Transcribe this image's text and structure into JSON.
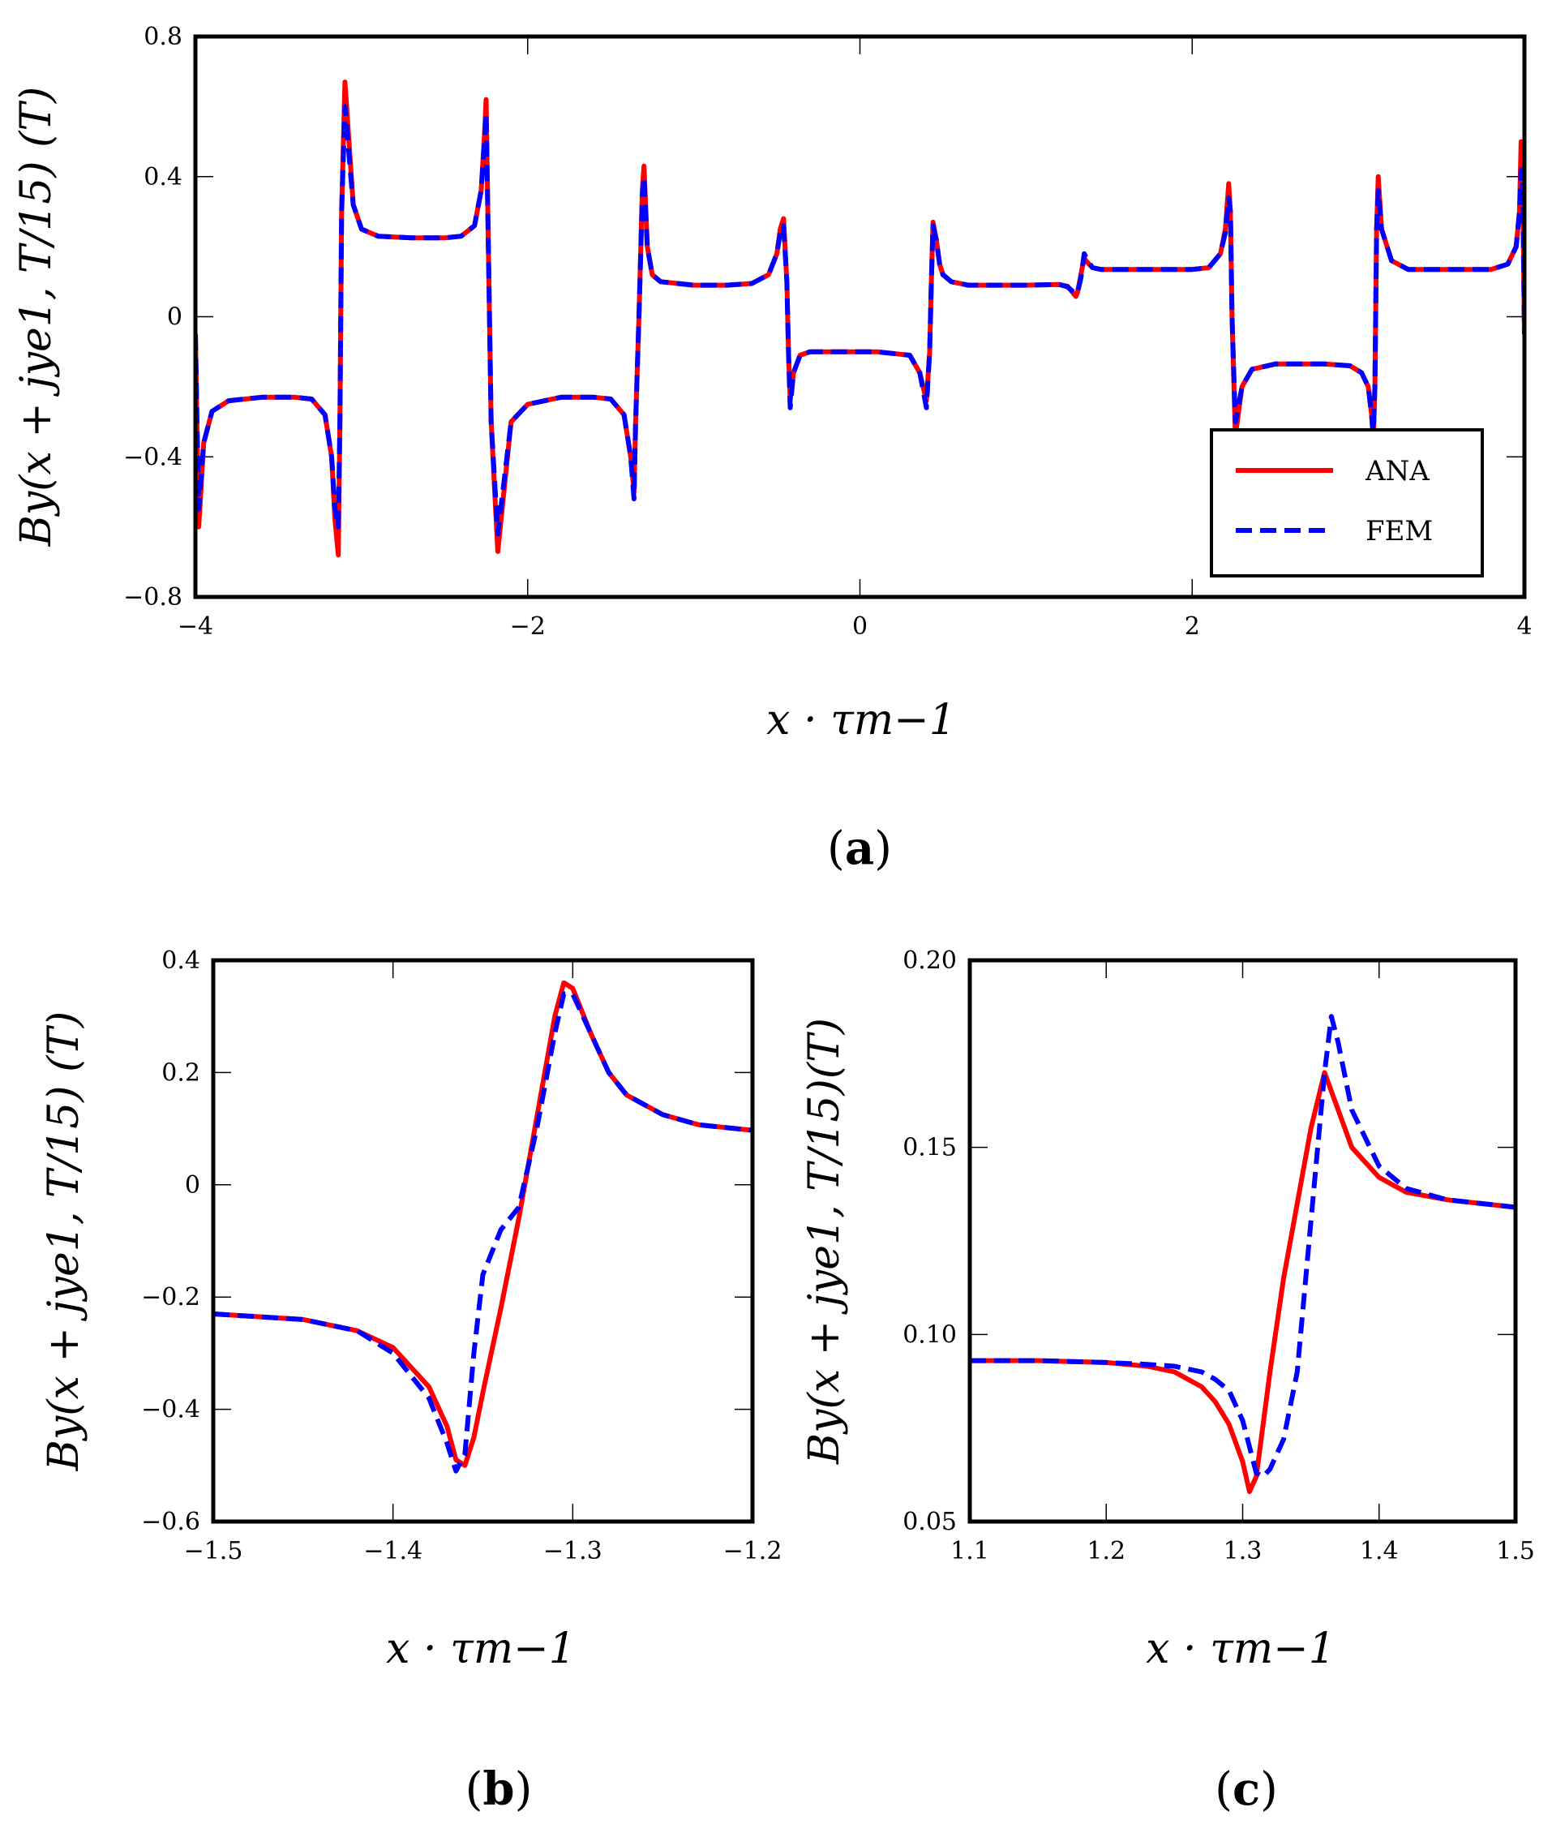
{
  "chart_data": [
    {
      "id": "a",
      "type": "line",
      "panel_label": "a",
      "xlabel": "x · τm−1",
      "ylabel": "By(x + jye1, T/15) (T)",
      "xlim": [
        -4,
        4
      ],
      "ylim": [
        -0.8,
        0.8
      ],
      "x_ticks": [
        -4,
        -2,
        0,
        2,
        4
      ],
      "x_tick_labels": [
        "−4",
        "−2",
        "0",
        "2",
        "4"
      ],
      "y_ticks": [
        -0.8,
        -0.4,
        0,
        0.4,
        0.8
      ],
      "y_tick_labels": [
        "−0.8",
        "−0.4",
        "0",
        "0.4",
        "0.8"
      ],
      "legend": {
        "position": "bottom-right",
        "entries": [
          "ANA",
          "FEM"
        ]
      },
      "series": [
        {
          "name": "ANA",
          "color": "#ff0000",
          "style": "solid",
          "x": [
            -4.0,
            -3.98,
            -3.95,
            -3.9,
            -3.8,
            -3.6,
            -3.4,
            -3.3,
            -3.22,
            -3.18,
            -3.16,
            -3.14,
            -3.13,
            -3.12,
            -3.1,
            -3.05,
            -3.0,
            -2.9,
            -2.7,
            -2.5,
            -2.4,
            -2.32,
            -2.28,
            -2.26,
            -2.25,
            -2.24,
            -2.22,
            -2.18,
            -2.1,
            -2.0,
            -1.8,
            -1.6,
            -1.5,
            -1.42,
            -1.38,
            -1.36,
            -1.35,
            -1.33,
            -1.31,
            -1.3,
            -1.28,
            -1.25,
            -1.2,
            -1.0,
            -0.8,
            -0.65,
            -0.55,
            -0.5,
            -0.48,
            -0.46,
            -0.44,
            -0.43,
            -0.42,
            -0.4,
            -0.36,
            -0.3,
            -0.1,
            0.1,
            0.3,
            0.36,
            0.4,
            0.42,
            0.43,
            0.44,
            0.46,
            0.48,
            0.5,
            0.55,
            0.65,
            0.8,
            1.0,
            1.2,
            1.25,
            1.3,
            1.31,
            1.33,
            1.35,
            1.36,
            1.4,
            1.45,
            1.6,
            2.0,
            2.1,
            2.17,
            2.2,
            2.22,
            2.23,
            2.24,
            2.26,
            2.3,
            2.36,
            2.5,
            2.8,
            2.95,
            3.02,
            3.06,
            3.08,
            3.09,
            3.1,
            3.11,
            3.12,
            3.14,
            3.2,
            3.3,
            3.5,
            3.8,
            3.9,
            3.95,
            3.97,
            3.98,
            3.99,
            4.0
          ],
          "y": [
            -0.05,
            -0.6,
            -0.36,
            -0.27,
            -0.24,
            -0.23,
            -0.23,
            -0.235,
            -0.28,
            -0.4,
            -0.58,
            -0.68,
            -0.3,
            0.3,
            0.67,
            0.32,
            0.25,
            0.23,
            0.225,
            0.225,
            0.23,
            0.26,
            0.36,
            0.52,
            0.62,
            0.3,
            -0.3,
            -0.67,
            -0.3,
            -0.25,
            -0.23,
            -0.23,
            -0.235,
            -0.28,
            -0.4,
            -0.5,
            -0.3,
            0.0,
            0.36,
            0.43,
            0.2,
            0.12,
            0.1,
            0.09,
            0.09,
            0.095,
            0.12,
            0.18,
            0.25,
            0.28,
            0.1,
            -0.1,
            -0.24,
            -0.16,
            -0.11,
            -0.1,
            -0.1,
            -0.1,
            -0.11,
            -0.16,
            -0.24,
            -0.1,
            0.1,
            0.27,
            0.22,
            0.15,
            0.12,
            0.1,
            0.09,
            0.09,
            0.09,
            0.092,
            0.087,
            0.058,
            0.07,
            0.12,
            0.17,
            0.16,
            0.14,
            0.135,
            0.135,
            0.135,
            0.14,
            0.18,
            0.25,
            0.38,
            0.3,
            0.0,
            -0.34,
            -0.2,
            -0.15,
            -0.135,
            -0.135,
            -0.14,
            -0.16,
            -0.2,
            -0.28,
            -0.36,
            -0.2,
            0.25,
            0.4,
            0.25,
            0.16,
            0.135,
            0.135,
            0.135,
            0.15,
            0.2,
            0.3,
            0.5,
            0.35,
            -0.05
          ]
        },
        {
          "name": "FEM",
          "color": "#0000ff",
          "style": "dashed",
          "x": [
            -4.0,
            -3.98,
            -3.95,
            -3.9,
            -3.8,
            -3.6,
            -3.4,
            -3.3,
            -3.22,
            -3.18,
            -3.16,
            -3.14,
            -3.13,
            -3.12,
            -3.1,
            -3.05,
            -3.0,
            -2.9,
            -2.7,
            -2.5,
            -2.4,
            -2.32,
            -2.28,
            -2.26,
            -2.25,
            -2.24,
            -2.22,
            -2.18,
            -2.1,
            -2.0,
            -1.8,
            -1.6,
            -1.5,
            -1.42,
            -1.38,
            -1.36,
            -1.35,
            -1.33,
            -1.31,
            -1.3,
            -1.28,
            -1.25,
            -1.2,
            -1.0,
            -0.8,
            -0.65,
            -0.55,
            -0.5,
            -0.48,
            -0.46,
            -0.44,
            -0.43,
            -0.42,
            -0.4,
            -0.36,
            -0.3,
            -0.1,
            0.1,
            0.3,
            0.36,
            0.4,
            0.42,
            0.43,
            0.44,
            0.46,
            0.48,
            0.5,
            0.55,
            0.65,
            0.8,
            1.0,
            1.2,
            1.25,
            1.3,
            1.31,
            1.33,
            1.35,
            1.36,
            1.4,
            1.45,
            1.6,
            2.0,
            2.1,
            2.17,
            2.2,
            2.22,
            2.23,
            2.24,
            2.26,
            2.3,
            2.36,
            2.5,
            2.8,
            2.95,
            3.02,
            3.06,
            3.08,
            3.09,
            3.1,
            3.11,
            3.12,
            3.14,
            3.2,
            3.3,
            3.5,
            3.8,
            3.9,
            3.95,
            3.97,
            3.98,
            3.99,
            4.0
          ],
          "y": [
            -0.05,
            -0.55,
            -0.36,
            -0.27,
            -0.24,
            -0.23,
            -0.23,
            -0.235,
            -0.28,
            -0.4,
            -0.55,
            -0.6,
            -0.3,
            0.3,
            0.6,
            0.32,
            0.25,
            0.23,
            0.225,
            0.225,
            0.23,
            0.26,
            0.36,
            0.5,
            0.58,
            0.3,
            -0.3,
            -0.62,
            -0.3,
            -0.25,
            -0.23,
            -0.23,
            -0.235,
            -0.28,
            -0.4,
            -0.52,
            -0.3,
            0.0,
            0.34,
            0.4,
            0.2,
            0.12,
            0.1,
            0.09,
            0.09,
            0.095,
            0.12,
            0.18,
            0.24,
            0.26,
            0.1,
            -0.1,
            -0.26,
            -0.16,
            -0.11,
            -0.1,
            -0.1,
            -0.1,
            -0.11,
            -0.16,
            -0.26,
            -0.1,
            0.1,
            0.26,
            0.22,
            0.15,
            0.12,
            0.1,
            0.09,
            0.09,
            0.09,
            0.092,
            0.085,
            0.065,
            0.07,
            0.11,
            0.18,
            0.17,
            0.14,
            0.135,
            0.135,
            0.135,
            0.14,
            0.18,
            0.24,
            0.34,
            0.3,
            0.0,
            -0.3,
            -0.2,
            -0.15,
            -0.135,
            -0.135,
            -0.14,
            -0.16,
            -0.2,
            -0.28,
            -0.33,
            -0.2,
            0.25,
            0.36,
            0.25,
            0.16,
            0.135,
            0.135,
            0.135,
            0.15,
            0.2,
            0.3,
            0.42,
            0.35,
            -0.05
          ]
        }
      ]
    },
    {
      "id": "b",
      "type": "line",
      "panel_label": "b",
      "xlabel": "x · τm−1",
      "ylabel": "By(x + jye1, T/15) (T)",
      "xlim": [
        -1.5,
        -1.2
      ],
      "ylim": [
        -0.6,
        0.4
      ],
      "x_ticks": [
        -1.5,
        -1.4,
        -1.3,
        -1.2
      ],
      "x_tick_labels": [
        "−1.5",
        "−1.4",
        "−1.3",
        "−1.2"
      ],
      "y_ticks": [
        -0.6,
        -0.4,
        -0.2,
        0,
        0.2,
        0.4
      ],
      "y_tick_labels": [
        "−0.6",
        "−0.4",
        "−0.2",
        "0",
        "0.2",
        "0.4"
      ],
      "series": [
        {
          "name": "ANA",
          "color": "#ff0000",
          "style": "solid",
          "x": [
            -1.5,
            -1.45,
            -1.42,
            -1.4,
            -1.38,
            -1.37,
            -1.365,
            -1.36,
            -1.355,
            -1.35,
            -1.34,
            -1.33,
            -1.32,
            -1.31,
            -1.305,
            -1.3,
            -1.29,
            -1.28,
            -1.27,
            -1.25,
            -1.23,
            -1.2
          ],
          "y": [
            -0.23,
            -0.24,
            -0.26,
            -0.29,
            -0.36,
            -0.43,
            -0.49,
            -0.5,
            -0.45,
            -0.37,
            -0.22,
            -0.06,
            0.12,
            0.3,
            0.36,
            0.35,
            0.27,
            0.2,
            0.16,
            0.125,
            0.107,
            0.097
          ]
        },
        {
          "name": "FEM",
          "color": "#0000ff",
          "style": "dashed",
          "x": [
            -1.5,
            -1.45,
            -1.42,
            -1.4,
            -1.38,
            -1.37,
            -1.365,
            -1.36,
            -1.355,
            -1.35,
            -1.34,
            -1.33,
            -1.32,
            -1.31,
            -1.305,
            -1.3,
            -1.29,
            -1.28,
            -1.27,
            -1.25,
            -1.23,
            -1.2
          ],
          "y": [
            -0.23,
            -0.24,
            -0.26,
            -0.3,
            -0.38,
            -0.46,
            -0.51,
            -0.48,
            -0.3,
            -0.16,
            -0.08,
            -0.04,
            0.1,
            0.27,
            0.34,
            0.34,
            0.27,
            0.2,
            0.16,
            0.125,
            0.107,
            0.097
          ]
        }
      ]
    },
    {
      "id": "c",
      "type": "line",
      "panel_label": "c",
      "xlabel": "x · τm−1",
      "ylabel": "By(x + jye1, T/15)(T)",
      "xlim": [
        1.1,
        1.5
      ],
      "ylim": [
        0.05,
        0.2
      ],
      "x_ticks": [
        1.1,
        1.2,
        1.3,
        1.4,
        1.5
      ],
      "x_tick_labels": [
        "1.1",
        "1.2",
        "1.3",
        "1.4",
        "1.5"
      ],
      "y_ticks": [
        0.05,
        0.1,
        0.15,
        0.2
      ],
      "y_tick_labels": [
        "0.05",
        "0.10",
        "0.15",
        "0.20"
      ],
      "series": [
        {
          "name": "ANA",
          "color": "#ff0000",
          "style": "solid",
          "x": [
            1.1,
            1.15,
            1.2,
            1.23,
            1.25,
            1.27,
            1.28,
            1.29,
            1.3,
            1.305,
            1.31,
            1.32,
            1.33,
            1.34,
            1.35,
            1.36,
            1.37,
            1.38,
            1.4,
            1.42,
            1.45,
            1.5
          ],
          "y": [
            0.093,
            0.093,
            0.0925,
            0.0915,
            0.09,
            0.086,
            0.082,
            0.076,
            0.066,
            0.058,
            0.062,
            0.09,
            0.115,
            0.135,
            0.155,
            0.17,
            0.16,
            0.15,
            0.142,
            0.138,
            0.136,
            0.134
          ]
        },
        {
          "name": "FEM",
          "color": "#0000ff",
          "style": "dashed",
          "x": [
            1.1,
            1.15,
            1.2,
            1.23,
            1.25,
            1.27,
            1.28,
            1.29,
            1.3,
            1.31,
            1.315,
            1.32,
            1.33,
            1.34,
            1.35,
            1.36,
            1.365,
            1.37,
            1.38,
            1.4,
            1.42,
            1.45,
            1.5
          ],
          "y": [
            0.093,
            0.093,
            0.0925,
            0.092,
            0.0915,
            0.09,
            0.088,
            0.085,
            0.077,
            0.063,
            0.062,
            0.064,
            0.072,
            0.09,
            0.13,
            0.17,
            0.185,
            0.178,
            0.16,
            0.145,
            0.139,
            0.136,
            0.134
          ]
        }
      ]
    }
  ]
}
